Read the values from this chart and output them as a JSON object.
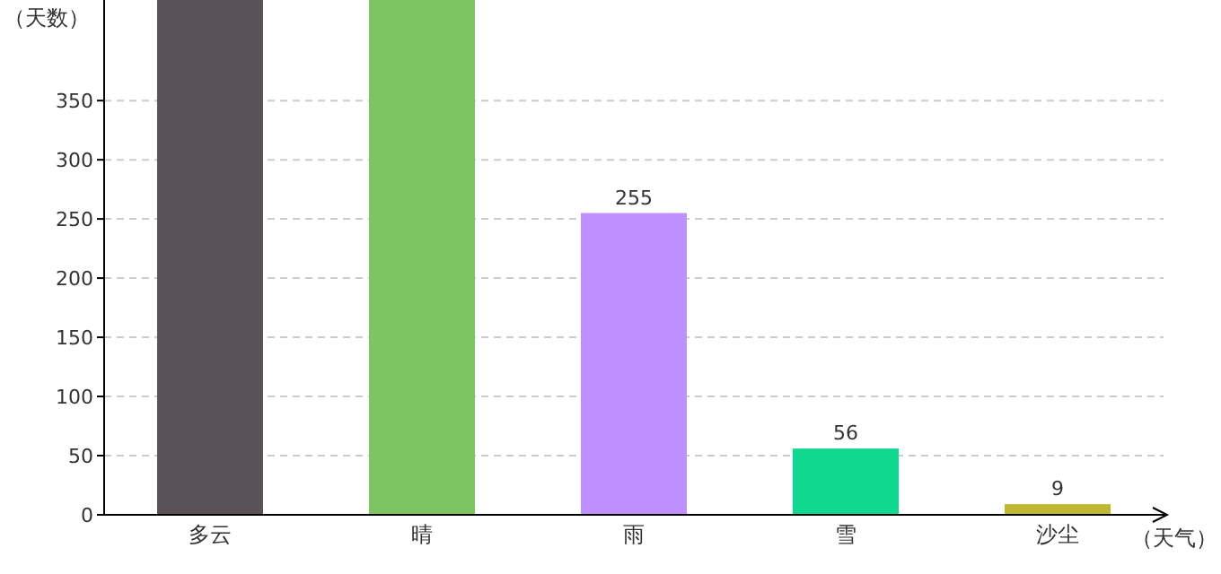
{
  "chart_data": {
    "type": "bar",
    "xlabel": "（天气）",
    "ylabel": "（天数）",
    "categories": [
      "多云",
      "晴",
      "雨",
      "雪",
      "沙尘"
    ],
    "values": [
      435,
      435,
      255,
      56,
      9
    ],
    "colors": [
      "#5a5257",
      "#7ec462",
      "#bf8fff",
      "#0fd88f",
      "#c0b830"
    ],
    "value_labels": [
      null,
      null,
      "255",
      "56",
      "9"
    ],
    "ylim": [
      0,
      435
    ],
    "yticks": [
      0,
      50,
      100,
      150,
      200,
      250,
      300,
      350
    ],
    "grid": "y"
  }
}
